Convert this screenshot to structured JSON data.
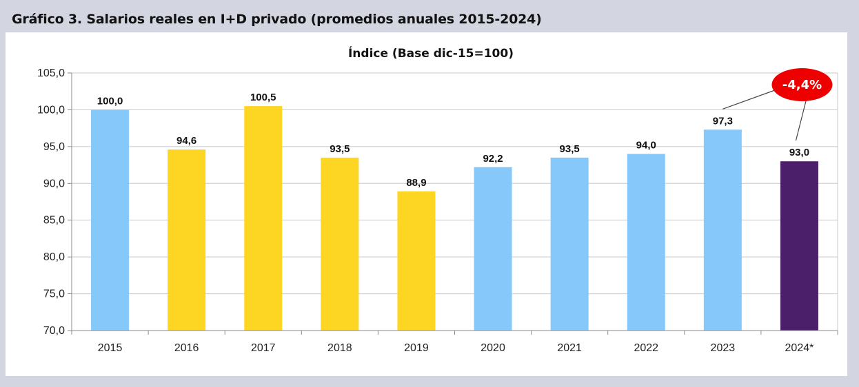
{
  "figure_title": "Gráfico 3. Salarios reales en I+D privado (promedios anuales 2015-2024)",
  "colors": {
    "background": "#d3d6e0",
    "light_blue": "#85c8f9",
    "yellow": "#fdd523",
    "purple": "#4b1f6a",
    "callout_red": "#ee0000",
    "grid": "#c8c8c8",
    "axis": "#8a8a8a"
  },
  "chart_data": {
    "type": "bar",
    "title": "Índice (Base dic-15=100)",
    "xlabel": "",
    "ylabel": "",
    "ylim": [
      70,
      105
    ],
    "yticks": [
      70,
      75,
      80,
      85,
      90,
      95,
      100,
      105
    ],
    "ytick_labels": [
      "70,0",
      "75,0",
      "80,0",
      "85,0",
      "90,0",
      "95,0",
      "100,0",
      "105,0"
    ],
    "grid": true,
    "categories": [
      "2015",
      "2016",
      "2017",
      "2018",
      "2019",
      "2020",
      "2021",
      "2022",
      "2023",
      "2024*"
    ],
    "values": [
      100.0,
      94.6,
      100.5,
      93.5,
      88.9,
      92.2,
      93.5,
      94.0,
      97.3,
      93.0
    ],
    "value_labels": [
      "100,0",
      "94,6",
      "100,5",
      "93,5",
      "88,9",
      "92,2",
      "93,5",
      "94,0",
      "97,3",
      "93,0"
    ],
    "bar_colors": [
      "light_blue",
      "yellow",
      "yellow",
      "yellow",
      "yellow",
      "light_blue",
      "light_blue",
      "light_blue",
      "light_blue",
      "purple"
    ],
    "annotation": {
      "text": "-4,4%",
      "from_category": "2023",
      "to_category": "2024*",
      "shape": "red ellipse"
    }
  }
}
